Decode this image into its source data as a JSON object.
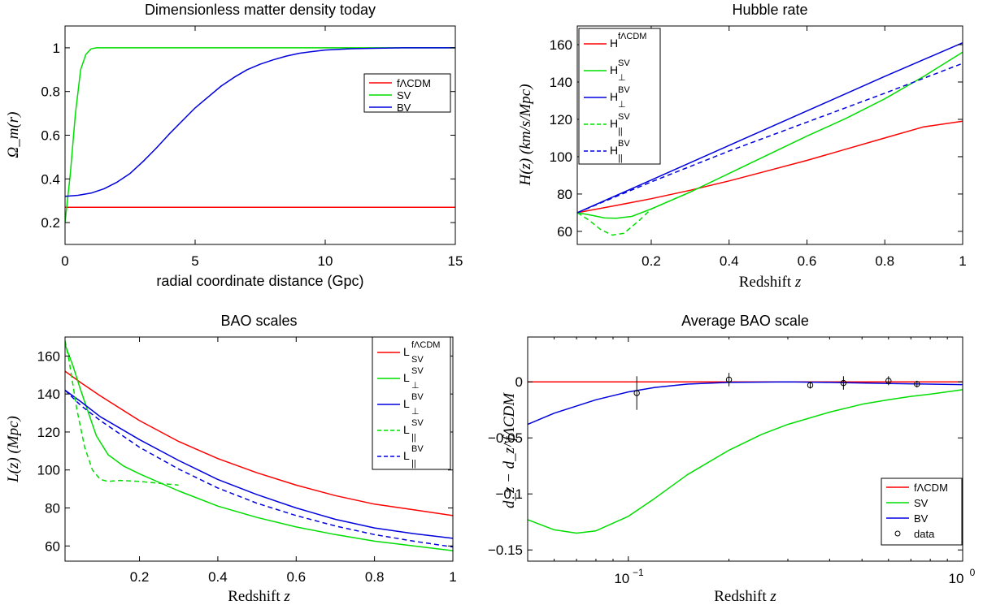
{
  "chart_data": [
    {
      "type": "line",
      "title": "Dimensionless matter density today",
      "xlabel": "radial coordinate distance (Gpc)",
      "ylabel": "Ω_m(r)",
      "xlim": [
        0,
        15
      ],
      "ylim": [
        0.1,
        1.1
      ],
      "xticks": [
        0,
        5,
        10,
        15
      ],
      "xtick_labels": [
        "0",
        "5",
        "10",
        "15"
      ],
      "yticks": [
        0.2,
        0.4,
        0.6,
        0.8,
        1.0
      ],
      "ytick_labels": [
        "0.2",
        "0.4",
        "0.6",
        "0.8",
        "1"
      ],
      "legend_position": "upper right",
      "series": [
        {
          "name": "fΛCDM",
          "color": "#ff0000",
          "style": "solid",
          "x": [
            0,
            5,
            10,
            15
          ],
          "y": [
            0.27,
            0.27,
            0.27,
            0.27
          ]
        },
        {
          "name": "SV",
          "color": "#00dd00",
          "style": "solid",
          "x": [
            0,
            0.2,
            0.4,
            0.6,
            0.8,
            1.0,
            1.2,
            1.5,
            3,
            6,
            10,
            15
          ],
          "y": [
            0.2,
            0.42,
            0.7,
            0.9,
            0.97,
            0.995,
            1.0,
            1.0,
            1.0,
            1.0,
            1.0,
            1.0
          ]
        },
        {
          "name": "BV",
          "color": "#0000dd",
          "style": "solid",
          "x": [
            0,
            0.5,
            1,
            1.5,
            2,
            2.5,
            3,
            3.5,
            4,
            4.5,
            5,
            5.5,
            6,
            6.5,
            7,
            7.5,
            8,
            8.5,
            9,
            9.5,
            10,
            11,
            12,
            13,
            15
          ],
          "y": [
            0.32,
            0.325,
            0.335,
            0.355,
            0.385,
            0.425,
            0.48,
            0.54,
            0.605,
            0.665,
            0.725,
            0.775,
            0.825,
            0.865,
            0.9,
            0.925,
            0.945,
            0.962,
            0.975,
            0.983,
            0.99,
            0.996,
            0.998,
            1.0,
            1.0
          ]
        }
      ]
    },
    {
      "type": "line",
      "title": "Hubble rate",
      "xlabel": "Redshift z",
      "ylabel": "H(z)  (km/s/Mpc)",
      "xlim": [
        0.01,
        1.0
      ],
      "ylim": [
        53,
        170
      ],
      "xticks": [
        0.2,
        0.4,
        0.6,
        0.8,
        1.0
      ],
      "xtick_labels": [
        "0.2",
        "0.4",
        "0.6",
        "0.8",
        "1"
      ],
      "yticks": [
        60,
        80,
        100,
        120,
        140,
        160
      ],
      "ytick_labels": [
        "60",
        "80",
        "100",
        "120",
        "140",
        "160"
      ],
      "legend_position": "upper left",
      "series": [
        {
          "name": "H^fΛCDM",
          "label_main": "H",
          "label_sup": "fΛCDM",
          "label_sub": "",
          "color": "#ff0000",
          "style": "solid",
          "x": [
            0.01,
            0.1,
            0.2,
            0.3,
            0.4,
            0.5,
            0.6,
            0.7,
            0.8,
            0.9,
            1.0
          ],
          "y": [
            70,
            73.5,
            77.5,
            82,
            87,
            92.5,
            98,
            104,
            110,
            116,
            119
          ]
        },
        {
          "name": "H_⊥^SV",
          "label_main": "H",
          "label_sup": "SV",
          "label_sub": "⊥",
          "color": "#00dd00",
          "style": "solid",
          "x": [
            0.01,
            0.05,
            0.08,
            0.11,
            0.15,
            0.2,
            0.3,
            0.4,
            0.5,
            0.6,
            0.7,
            0.8,
            0.9,
            1.0
          ],
          "y": [
            70,
            68.5,
            67.2,
            67,
            68,
            72,
            81,
            91,
            101,
            111,
            120.5,
            131,
            143,
            156
          ]
        },
        {
          "name": "H_⊥^BV",
          "label_main": "H",
          "label_sup": "BV",
          "label_sub": "⊥",
          "color": "#0000dd",
          "style": "solid",
          "x": [
            0.01,
            0.2,
            0.4,
            0.6,
            0.8,
            1.0
          ],
          "y": [
            70,
            87.5,
            106,
            124.5,
            143,
            161
          ]
        },
        {
          "name": "H_∥^SV",
          "label_main": "H",
          "label_sup": "SV",
          "label_sub": "||",
          "color": "#00dd00",
          "style": "dashed",
          "x": [
            0.01,
            0.04,
            0.07,
            0.1,
            0.13,
            0.17,
            0.2,
            0.3
          ],
          "y": [
            70,
            66,
            61,
            58,
            59,
            66,
            72,
            81
          ]
        },
        {
          "name": "H_∥^BV",
          "label_main": "H",
          "label_sup": "BV",
          "label_sub": "||",
          "color": "#0000dd",
          "style": "dashed",
          "x": [
            0.01,
            0.2,
            0.4,
            0.6,
            0.8,
            1.0
          ],
          "y": [
            70,
            86.5,
            103,
            118.5,
            134,
            150
          ]
        }
      ]
    },
    {
      "type": "line",
      "title": "BAO scales",
      "xlabel": "Redshift z",
      "ylabel": "L(z)  (Mpc)",
      "xlim": [
        0.01,
        1.0
      ],
      "ylim": [
        52,
        170
      ],
      "xticks": [
        0.2,
        0.4,
        0.6,
        0.8,
        1.0
      ],
      "xtick_labels": [
        "0.2",
        "0.4",
        "0.6",
        "0.8",
        "1"
      ],
      "yticks": [
        60,
        80,
        100,
        120,
        140,
        160
      ],
      "ytick_labels": [
        "60",
        "80",
        "100",
        "120",
        "140",
        "160"
      ],
      "legend_position": "upper right",
      "series": [
        {
          "name": "L_SV^fΛCDM",
          "label_main": "L",
          "label_sup": "fΛCDM",
          "label_sub": "SV",
          "color": "#ff0000",
          "style": "solid",
          "x": [
            0.01,
            0.05,
            0.1,
            0.2,
            0.3,
            0.4,
            0.5,
            0.6,
            0.7,
            0.8,
            0.9,
            1.0
          ],
          "y": [
            152,
            146,
            139,
            126,
            115,
            106,
            98.5,
            92,
            86.5,
            82,
            79,
            76
          ]
        },
        {
          "name": "L_⊥^SV",
          "label_main": "L",
          "label_sup": "SV",
          "label_sub": "⊥",
          "color": "#00dd00",
          "style": "solid",
          "x": [
            0.01,
            0.03,
            0.05,
            0.07,
            0.09,
            0.12,
            0.16,
            0.2,
            0.3,
            0.4,
            0.5,
            0.6,
            0.7,
            0.8,
            0.9,
            1.0
          ],
          "y": [
            166,
            155,
            142,
            130,
            118,
            108,
            102,
            98,
            89,
            81,
            75,
            70,
            66,
            62.5,
            60,
            57.5
          ]
        },
        {
          "name": "L_⊥^BV",
          "label_main": "L",
          "label_sup": "BV",
          "label_sub": "⊥",
          "color": "#0000dd",
          "style": "solid",
          "x": [
            0.01,
            0.05,
            0.1,
            0.2,
            0.3,
            0.4,
            0.5,
            0.6,
            0.7,
            0.8,
            0.9,
            1.0
          ],
          "y": [
            142,
            136,
            128,
            116,
            105,
            95,
            87,
            80,
            74,
            69.5,
            66.5,
            64
          ]
        },
        {
          "name": "L_∥^SV",
          "label_main": "L",
          "label_sup": "SV",
          "label_sub": "||",
          "color": "#00dd00",
          "style": "dashed",
          "x": [
            0.01,
            0.02,
            0.04,
            0.06,
            0.08,
            0.1,
            0.12,
            0.15,
            0.2,
            0.25,
            0.3
          ],
          "y": [
            168,
            158,
            132,
            112,
            100,
            95,
            94,
            94.5,
            94,
            93,
            92
          ]
        },
        {
          "name": "L_∥^BV",
          "label_main": "L",
          "label_sup": "BV",
          "label_sub": "||",
          "color": "#0000dd",
          "style": "dashed",
          "x": [
            0.01,
            0.05,
            0.1,
            0.2,
            0.3,
            0.4,
            0.5,
            0.6,
            0.7,
            0.8,
            0.9,
            1.0
          ],
          "y": [
            142,
            134,
            126,
            112,
            100.5,
            90.5,
            82.5,
            76,
            70.5,
            66,
            62.5,
            59.5
          ]
        }
      ]
    },
    {
      "type": "line",
      "title": "Average BAO scale",
      "xlabel": "Redshift z",
      "ylabel": "d_z − d_z^fΛCDM",
      "x_scale": "log",
      "xlim": [
        0.05,
        1.0
      ],
      "ylim": [
        -0.16,
        0.04
      ],
      "xticks": [
        0.1,
        1.0
      ],
      "xtick_labels": [
        {
          "base": "10",
          "exp": "−1"
        },
        {
          "base": "10",
          "exp": "0"
        }
      ],
      "yticks": [
        -0.15,
        -0.1,
        -0.05,
        0
      ],
      "ytick_labels": [
        "−0.15",
        "−0.1",
        "−0.05",
        "0"
      ],
      "legend_position": "lower right",
      "series": [
        {
          "name": "fΛCDM",
          "color": "#ff0000",
          "style": "solid",
          "x": [
            0.05,
            1.0
          ],
          "y": [
            0,
            0
          ]
        },
        {
          "name": "SV",
          "color": "#00dd00",
          "style": "solid",
          "x": [
            0.05,
            0.06,
            0.07,
            0.08,
            0.1,
            0.12,
            0.15,
            0.2,
            0.25,
            0.3,
            0.4,
            0.5,
            0.6,
            0.7,
            0.8,
            1.0
          ],
          "y": [
            -0.123,
            -0.132,
            -0.135,
            -0.133,
            -0.12,
            -0.104,
            -0.083,
            -0.061,
            -0.047,
            -0.038,
            -0.027,
            -0.02,
            -0.016,
            -0.013,
            -0.011,
            -0.007
          ]
        },
        {
          "name": "BV",
          "color": "#0000dd",
          "style": "solid",
          "x": [
            0.05,
            0.06,
            0.08,
            0.1,
            0.12,
            0.15,
            0.2,
            0.3,
            0.4,
            0.6,
            0.8,
            1.0
          ],
          "y": [
            -0.038,
            -0.028,
            -0.016,
            -0.009,
            -0.005,
            -0.002,
            -0.0005,
            0,
            -0.0005,
            -0.0015,
            -0.002,
            -0.0025
          ]
        },
        {
          "name": "data",
          "color": "#000000",
          "style": "marker",
          "x": [
            0.106,
            0.2,
            0.35,
            0.44,
            0.6,
            0.73
          ],
          "y": [
            -0.01,
            0.002,
            -0.003,
            -0.001,
            0.001,
            -0.002
          ],
          "err": [
            0.015,
            0.006,
            0.003,
            0.006,
            0.004,
            0.003
          ]
        }
      ]
    }
  ]
}
